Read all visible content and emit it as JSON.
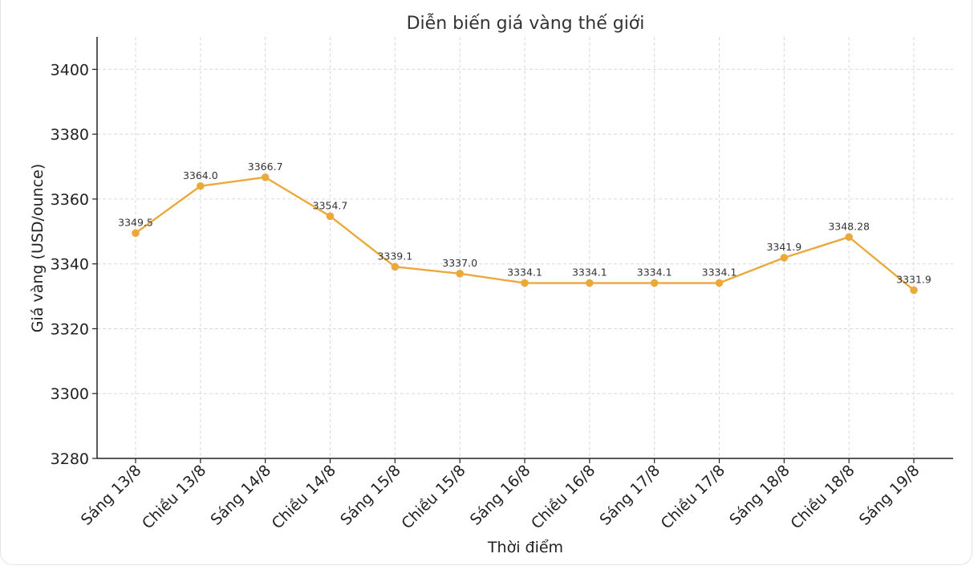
{
  "chart_data": {
    "type": "line",
    "title": "Diễn biến giá vàng thế giới",
    "xlabel": "Thời điểm",
    "ylabel": "Giá vàng (USD/ounce)",
    "categories": [
      "Sáng 13/8",
      "Chiều 13/8",
      "Sáng 14/8",
      "Chiều 14/8",
      "Sáng 15/8",
      "Chiều 15/8",
      "Sáng 16/8",
      "Chiều 16/8",
      "Sáng 17/8",
      "Chiều 17/8",
      "Sáng 18/8",
      "Chiều 18/8",
      "Sáng 19/8"
    ],
    "values": [
      3349.5,
      3364.0,
      3366.7,
      3354.7,
      3339.1,
      3337.0,
      3334.1,
      3334.1,
      3334.1,
      3334.1,
      3341.9,
      3348.28,
      3331.9
    ],
    "value_labels": [
      "3349.5",
      "3364.0",
      "3366.7",
      "3354.7",
      "3339.1",
      "3337.0",
      "3334.1",
      "3334.1",
      "3334.1",
      "3334.1",
      "3341.9",
      "3348.28",
      "3331.9"
    ],
    "ylim": [
      3280,
      3410
    ],
    "yticks": [
      3280,
      3300,
      3320,
      3340,
      3360,
      3380,
      3400
    ],
    "ytick_labels": [
      "3280",
      "3300",
      "3320",
      "3340",
      "3360",
      "3380",
      "3400"
    ],
    "grid": true,
    "line_color": "#EBA93C",
    "marker_color": "#EBA93C"
  }
}
